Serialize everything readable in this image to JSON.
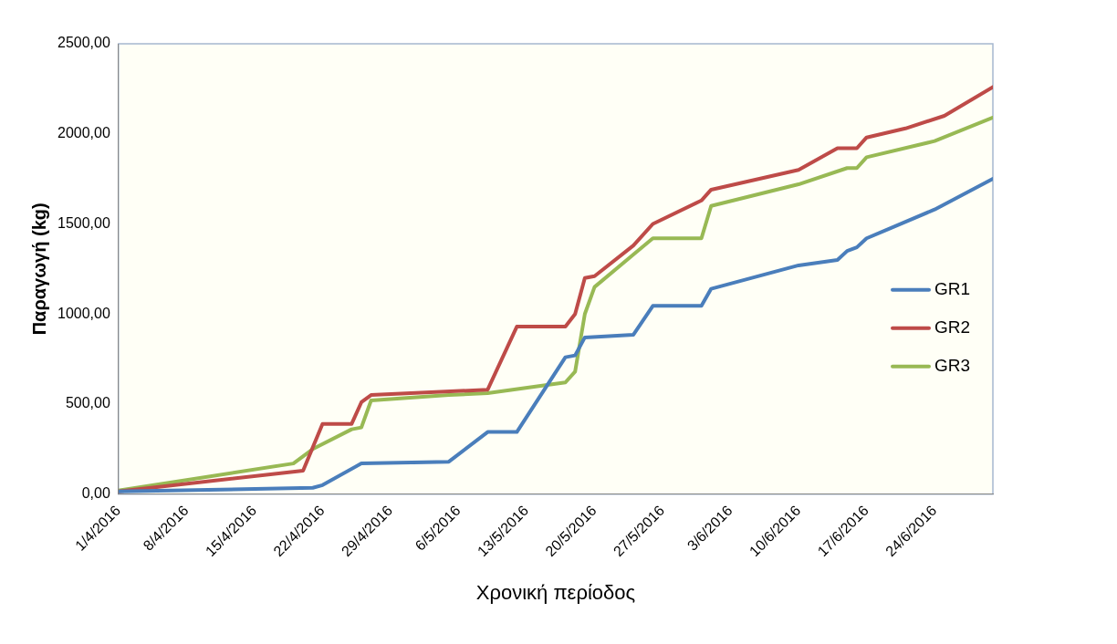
{
  "chart_data": {
    "type": "line",
    "xlabel": "Χρονική περίοδος",
    "ylabel": "Παραγωγή (kg)",
    "xlim": [
      "2016-04-01",
      "2016-06-30"
    ],
    "xticks": [
      {
        "value": "2016-04-01",
        "label": "1/4/2016"
      },
      {
        "value": "2016-04-08",
        "label": "8/4/2016"
      },
      {
        "value": "2016-04-15",
        "label": "15/4/2016"
      },
      {
        "value": "2016-04-22",
        "label": "22/4/2016"
      },
      {
        "value": "2016-04-29",
        "label": "29/4/2016"
      },
      {
        "value": "2016-05-06",
        "label": "6/5/2016"
      },
      {
        "value": "2016-05-13",
        "label": "13/5/2016"
      },
      {
        "value": "2016-05-20",
        "label": "20/5/2016"
      },
      {
        "value": "2016-05-27",
        "label": "27/5/2016"
      },
      {
        "value": "2016-06-03",
        "label": "3/6/2016"
      },
      {
        "value": "2016-06-10",
        "label": "10/6/2016"
      },
      {
        "value": "2016-06-17",
        "label": "17/6/2016"
      },
      {
        "value": "2016-06-24",
        "label": "24/6/2016"
      }
    ],
    "ylim": [
      0,
      2500
    ],
    "yticks": [
      {
        "value": 0,
        "label": "0,00"
      },
      {
        "value": 500,
        "label": "500,00"
      },
      {
        "value": 1000,
        "label": "1000,00"
      },
      {
        "value": 1500,
        "label": "1500,00"
      },
      {
        "value": 2000,
        "label": "2000,00"
      },
      {
        "value": 2500,
        "label": "2500,00"
      }
    ],
    "grid": false,
    "legend": "right",
    "marker": "none",
    "line_style": "solid",
    "series": [
      {
        "name": "GR1",
        "color": "#4a7ebb",
        "x": [
          "2016-04-01",
          "2016-04-21",
          "2016-04-22",
          "2016-04-26",
          "2016-05-05",
          "2016-05-09",
          "2016-05-12",
          "2016-05-17",
          "2016-05-18",
          "2016-05-19",
          "2016-05-24",
          "2016-05-26",
          "2016-05-31",
          "2016-06-01",
          "2016-06-10",
          "2016-06-14",
          "2016-06-15",
          "2016-06-16",
          "2016-06-17",
          "2016-06-24",
          "2016-06-30"
        ],
        "values": [
          15,
          35,
          50,
          170,
          180,
          345,
          345,
          760,
          770,
          870,
          885,
          1045,
          1045,
          1140,
          1270,
          1300,
          1350,
          1370,
          1420,
          1580,
          1750
        ]
      },
      {
        "name": "GR2",
        "color": "#be4b48",
        "x": [
          "2016-04-01",
          "2016-04-20",
          "2016-04-22",
          "2016-04-25",
          "2016-04-26",
          "2016-04-27",
          "2016-05-09",
          "2016-05-12",
          "2016-05-17",
          "2016-05-18",
          "2016-05-19",
          "2016-05-20",
          "2016-05-24",
          "2016-05-26",
          "2016-05-31",
          "2016-06-01",
          "2016-06-10",
          "2016-06-14",
          "2016-06-16",
          "2016-06-17",
          "2016-06-21",
          "2016-06-25",
          "2016-06-30"
        ],
        "values": [
          15,
          130,
          390,
          390,
          510,
          550,
          580,
          930,
          930,
          1000,
          1200,
          1210,
          1380,
          1500,
          1630,
          1690,
          1800,
          1920,
          1920,
          1980,
          2030,
          2100,
          2260
        ]
      },
      {
        "name": "GR3",
        "color": "#98b954",
        "x": [
          "2016-04-01",
          "2016-04-19",
          "2016-04-21",
          "2016-04-25",
          "2016-04-26",
          "2016-04-27",
          "2016-05-05",
          "2016-05-09",
          "2016-05-17",
          "2016-05-18",
          "2016-05-19",
          "2016-05-20",
          "2016-05-24",
          "2016-05-26",
          "2016-05-31",
          "2016-06-01",
          "2016-06-10",
          "2016-06-15",
          "2016-06-16",
          "2016-06-17",
          "2016-06-24",
          "2016-06-30"
        ],
        "values": [
          20,
          170,
          250,
          360,
          370,
          520,
          550,
          560,
          620,
          680,
          1000,
          1150,
          1330,
          1420,
          1420,
          1600,
          1720,
          1810,
          1810,
          1870,
          1960,
          2090
        ]
      }
    ]
  }
}
